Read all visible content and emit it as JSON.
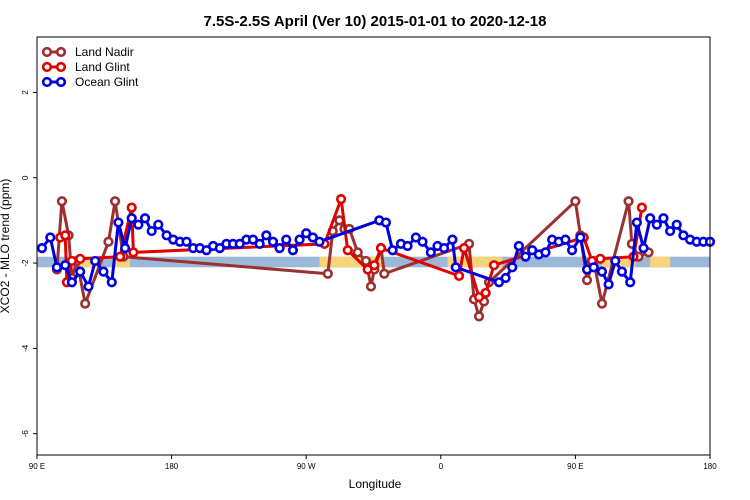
{
  "chart_data": {
    "type": "line",
    "title": "7.5S-2.5S April (Ver 10)   2015-01-01 to 2020-12-18",
    "xlabel": "Longitude",
    "ylabel": "XCO2 - MLO trend (ppm)",
    "xlim": [
      0,
      405
    ],
    "ylim": [
      -6.5,
      3.3
    ],
    "x_ticks": [
      {
        "pos": 0,
        "label": "90 E"
      },
      {
        "pos": 81,
        "label": "180"
      },
      {
        "pos": 162,
        "label": "90 W"
      },
      {
        "pos": 243,
        "label": "0"
      },
      {
        "pos": 324,
        "label": "90 E"
      },
      {
        "pos": 405,
        "label": "180"
      }
    ],
    "y_ticks": [
      {
        "value": 2,
        "label": "2"
      },
      {
        "value": 0,
        "label": "0"
      },
      {
        "value": -2,
        "label": "-2"
      },
      {
        "value": -4,
        "label": "-4"
      },
      {
        "value": -6,
        "label": "-6"
      }
    ],
    "band": {
      "y_min": -2.1,
      "y_max": -1.85,
      "blue": "#9cb8d9",
      "orange": "#f7d37a"
    },
    "band_orange_ranges": [
      [
        17,
        37
      ],
      [
        46,
        56
      ],
      [
        170,
        208
      ],
      [
        247,
        280
      ],
      [
        340,
        360
      ],
      [
        369,
        381
      ]
    ],
    "legend_position": "top-left",
    "series": [
      {
        "name": "Land Nadir",
        "color": "#9a3030",
        "x": [
          12,
          15,
          19,
          21,
          24,
          29,
          43,
          47,
          52,
          175,
          178,
          182,
          185,
          188,
          193,
          198,
          201,
          203,
          207,
          209,
          260,
          263,
          266,
          269,
          272,
          324,
          327,
          331,
          335,
          340,
          356,
          358,
          362,
          368
        ],
        "y": [
          -2.15,
          -0.55,
          -1.35,
          -2.35,
          -1.95,
          -2.95,
          -1.5,
          -0.55,
          -1.85,
          -2.25,
          -1.25,
          -1.0,
          -1.2,
          -1.2,
          -1.75,
          -1.95,
          -2.55,
          -2.15,
          -1.65,
          -2.25,
          -1.55,
          -2.85,
          -3.25,
          -2.9,
          -2.45,
          -0.55,
          -1.35,
          -2.4,
          -1.95,
          -2.95,
          -0.55,
          -1.55,
          -1.85,
          -1.75
        ]
      },
      {
        "name": "Land Glint",
        "color": "#e00000",
        "x": [
          14,
          17,
          18,
          21,
          26,
          50,
          57,
          58,
          173,
          183,
          187,
          199,
          203,
          207,
          254,
          257,
          266,
          270,
          275,
          329,
          334,
          339,
          359,
          364
        ],
        "y": [
          -1.4,
          -1.35,
          -2.45,
          -1.95,
          -1.9,
          -1.85,
          -0.7,
          -1.75,
          -1.55,
          -0.5,
          -1.7,
          -2.15,
          -2.05,
          -1.65,
          -2.3,
          -1.65,
          -2.8,
          -2.7,
          -2.05,
          -1.4,
          -1.95,
          -1.9,
          -1.85,
          -0.7
        ]
      },
      {
        "name": "Ocean Glint",
        "color": "#0000dd",
        "x": [
          3,
          8,
          12,
          17,
          21,
          26,
          31,
          35,
          40,
          45,
          49,
          53,
          57,
          61,
          65,
          69,
          73,
          78,
          82,
          86,
          90,
          94,
          98,
          102,
          106,
          110,
          114,
          118,
          122,
          126,
          130,
          134,
          138,
          142,
          146,
          150,
          154,
          158,
          162,
          166,
          170,
          206,
          210,
          214,
          219,
          223,
          228,
          232,
          237,
          241,
          245,
          250,
          252,
          278,
          282,
          286,
          290,
          294,
          298,
          302,
          306,
          310,
          314,
          318,
          322,
          327,
          331,
          335,
          340,
          344,
          348,
          352,
          357,
          361,
          365,
          369,
          373,
          377,
          381,
          385,
          389,
          393,
          397,
          401,
          405
        ],
        "y": [
          -1.65,
          -1.4,
          -2.1,
          -2.05,
          -2.45,
          -2.2,
          -2.55,
          -1.95,
          -2.2,
          -2.45,
          -1.05,
          -1.65,
          -0.95,
          -1.1,
          -0.95,
          -1.25,
          -1.1,
          -1.35,
          -1.45,
          -1.5,
          -1.5,
          -1.65,
          -1.65,
          -1.7,
          -1.6,
          -1.65,
          -1.55,
          -1.55,
          -1.55,
          -1.45,
          -1.45,
          -1.55,
          -1.35,
          -1.5,
          -1.65,
          -1.45,
          -1.7,
          -1.45,
          -1.3,
          -1.4,
          -1.5,
          -1.0,
          -1.05,
          -1.7,
          -1.55,
          -1.6,
          -1.4,
          -1.5,
          -1.75,
          -1.6,
          -1.65,
          -1.45,
          -2.1,
          -2.45,
          -2.35,
          -2.1,
          -1.6,
          -1.85,
          -1.7,
          -1.8,
          -1.75,
          -1.45,
          -1.5,
          -1.45,
          -1.7,
          -1.4,
          -2.15,
          -2.1,
          -2.2,
          -2.5,
          -1.95,
          -2.2,
          -2.45,
          -1.05,
          -1.65,
          -0.95,
          -1.1,
          -0.95,
          -1.25,
          -1.1,
          -1.35,
          -1.45,
          -1.5,
          -1.5,
          -1.5
        ]
      }
    ]
  }
}
